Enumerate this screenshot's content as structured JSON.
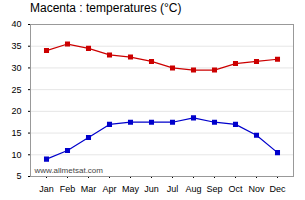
{
  "chart_data": {
    "type": "line",
    "title": "Macenta : temperatures (°C)",
    "categories": [
      "Jan",
      "Feb",
      "Mar",
      "Apr",
      "May",
      "Jun",
      "Jul",
      "Aug",
      "Sep",
      "Oct",
      "Nov",
      "Dec"
    ],
    "series": [
      {
        "color": "#cc0000",
        "values": [
          34,
          35.5,
          34.5,
          33,
          32.5,
          31.5,
          30,
          29.5,
          29.5,
          31,
          31.5,
          32
        ]
      },
      {
        "color": "#0000cc",
        "values": [
          9,
          11,
          14,
          17,
          17.5,
          17.5,
          17.5,
          18.5,
          17.5,
          17,
          14.5,
          10.5
        ]
      }
    ],
    "ylim": [
      5,
      40
    ],
    "yticks": [
      5,
      10,
      15,
      20,
      25,
      30,
      35,
      40
    ],
    "grid": true,
    "marker": "square",
    "annotations": [
      "www.allmetsat.com"
    ]
  }
}
